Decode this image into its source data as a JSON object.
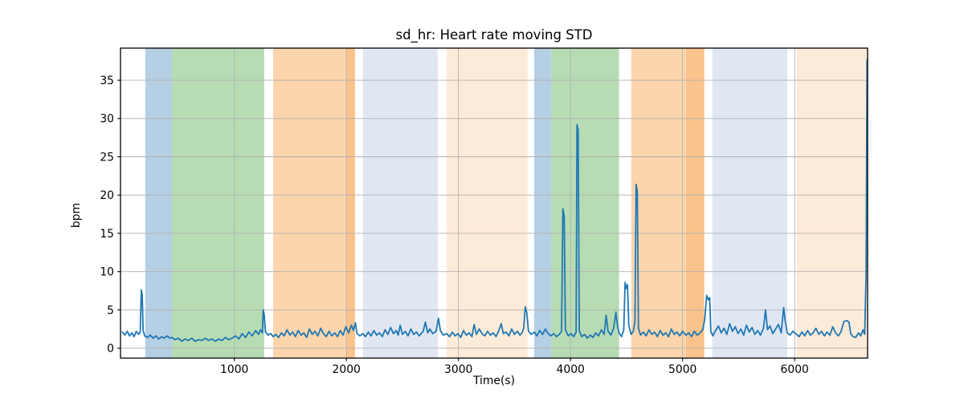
{
  "chart_data": {
    "type": "line",
    "title": "sd_hr: Heart rate moving STD",
    "xlabel": "Time(s)",
    "ylabel": "bpm",
    "xlim": [
      -16,
      6651
    ],
    "ylim": [
      -1.3,
      39.2
    ],
    "x_ticks": [
      1000,
      2000,
      3000,
      4000,
      5000,
      6000
    ],
    "y_ticks": [
      0,
      5,
      10,
      15,
      20,
      25,
      30,
      35
    ],
    "grid": true,
    "legend": "none",
    "line_color": "#1f77b4",
    "grid_color": "#b0b0b0",
    "spine_color": "#000000",
    "bands": [
      {
        "start": 205,
        "end": 443,
        "color": "#b5cfe4",
        "kind": "blue"
      },
      {
        "start": 443,
        "end": 1267,
        "color": "#b7dcb4",
        "kind": "green"
      },
      {
        "start": 1346,
        "end": 2003,
        "color": "#fcd5ad",
        "kind": "orange"
      },
      {
        "start": 2003,
        "end": 2077,
        "color": "#f9c38b",
        "kind": "orange-dark"
      },
      {
        "start": 2147,
        "end": 2816,
        "color": "#e0e7f3",
        "kind": "pale-blue"
      },
      {
        "start": 2895,
        "end": 3617,
        "color": "#fdebd9",
        "kind": "pale-orange"
      },
      {
        "start": 3676,
        "end": 3831,
        "color": "#b5cfe4",
        "kind": "blue"
      },
      {
        "start": 3831,
        "end": 4433,
        "color": "#b7dcb4",
        "kind": "green"
      },
      {
        "start": 4543,
        "end": 5030,
        "color": "#fcd5ad",
        "kind": "orange"
      },
      {
        "start": 5030,
        "end": 5193,
        "color": "#f9c38b",
        "kind": "orange-dark"
      },
      {
        "start": 5265,
        "end": 5934,
        "color": "#e0e7f3",
        "kind": "pale-blue"
      },
      {
        "start": 6017,
        "end": 6651,
        "color": "#fdebd9",
        "kind": "pale-orange"
      }
    ],
    "series": [
      [
        0,
        2.1
      ],
      [
        22,
        1.7
      ],
      [
        45,
        2.2
      ],
      [
        65,
        1.6
      ],
      [
        85,
        2.0
      ],
      [
        105,
        1.5
      ],
      [
        125,
        2.2
      ],
      [
        145,
        1.8
      ],
      [
        160,
        2.1
      ],
      [
        170,
        7.6
      ],
      [
        178,
        6.9
      ],
      [
        186,
        2.3
      ],
      [
        200,
        1.6
      ],
      [
        225,
        1.4
      ],
      [
        250,
        1.7
      ],
      [
        275,
        1.3
      ],
      [
        300,
        1.6
      ],
      [
        325,
        1.2
      ],
      [
        350,
        1.5
      ],
      [
        375,
        1.3
      ],
      [
        400,
        1.6
      ],
      [
        425,
        1.3
      ],
      [
        443,
        1.4
      ],
      [
        470,
        1.1
      ],
      [
        500,
        1.3
      ],
      [
        530,
        0.9
      ],
      [
        560,
        1.2
      ],
      [
        590,
        1.0
      ],
      [
        620,
        1.3
      ],
      [
        650,
        0.9
      ],
      [
        680,
        1.1
      ],
      [
        710,
        1.0
      ],
      [
        740,
        1.3
      ],
      [
        770,
        1.0
      ],
      [
        800,
        1.2
      ],
      [
        830,
        0.9
      ],
      [
        860,
        1.2
      ],
      [
        890,
        1.0
      ],
      [
        920,
        1.4
      ],
      [
        950,
        1.1
      ],
      [
        980,
        1.3
      ],
      [
        1010,
        1.6
      ],
      [
        1040,
        1.2
      ],
      [
        1070,
        1.9
      ],
      [
        1100,
        1.4
      ],
      [
        1130,
        2.1
      ],
      [
        1160,
        1.6
      ],
      [
        1190,
        2.3
      ],
      [
        1215,
        1.8
      ],
      [
        1235,
        2.4
      ],
      [
        1250,
        2.0
      ],
      [
        1258,
        5.0
      ],
      [
        1266,
        4.4
      ],
      [
        1278,
        2.1
      ],
      [
        1300,
        1.7
      ],
      [
        1325,
        1.9
      ],
      [
        1346,
        1.5
      ],
      [
        1370,
        1.8
      ],
      [
        1395,
        1.4
      ],
      [
        1420,
        2.0
      ],
      [
        1445,
        1.6
      ],
      [
        1470,
        2.4
      ],
      [
        1495,
        1.7
      ],
      [
        1520,
        2.1
      ],
      [
        1545,
        1.5
      ],
      [
        1570,
        2.3
      ],
      [
        1595,
        1.7
      ],
      [
        1620,
        2.0
      ],
      [
        1645,
        1.4
      ],
      [
        1670,
        2.5
      ],
      [
        1695,
        1.8
      ],
      [
        1720,
        2.2
      ],
      [
        1745,
        1.6
      ],
      [
        1770,
        2.6
      ],
      [
        1795,
        1.9
      ],
      [
        1820,
        1.5
      ],
      [
        1845,
        2.2
      ],
      [
        1870,
        1.6
      ],
      [
        1895,
        2.0
      ],
      [
        1920,
        1.5
      ],
      [
        1945,
        2.3
      ],
      [
        1970,
        1.7
      ],
      [
        1995,
        2.8
      ],
      [
        2020,
        2.0
      ],
      [
        2045,
        3.0
      ],
      [
        2063,
        2.3
      ],
      [
        2080,
        3.3
      ],
      [
        2095,
        1.9
      ],
      [
        2120,
        1.6
      ],
      [
        2147,
        1.9
      ],
      [
        2170,
        1.5
      ],
      [
        2195,
        2.1
      ],
      [
        2220,
        1.6
      ],
      [
        2245,
        2.3
      ],
      [
        2270,
        1.7
      ],
      [
        2295,
        2.0
      ],
      [
        2320,
        1.5
      ],
      [
        2345,
        2.4
      ],
      [
        2370,
        1.8
      ],
      [
        2395,
        2.7
      ],
      [
        2420,
        1.9
      ],
      [
        2445,
        2.3
      ],
      [
        2462,
        1.7
      ],
      [
        2480,
        3.0
      ],
      [
        2500,
        1.8
      ],
      [
        2525,
        2.2
      ],
      [
        2550,
        1.6
      ],
      [
        2575,
        2.5
      ],
      [
        2600,
        1.8
      ],
      [
        2625,
        2.1
      ],
      [
        2650,
        1.6
      ],
      [
        2685,
        2.2
      ],
      [
        2705,
        3.4
      ],
      [
        2725,
        2.0
      ],
      [
        2745,
        2.5
      ],
      [
        2770,
        1.9
      ],
      [
        2800,
        2.2
      ],
      [
        2822,
        3.9
      ],
      [
        2838,
        2.3
      ],
      [
        2865,
        1.7
      ],
      [
        2895,
        1.9
      ],
      [
        2920,
        1.5
      ],
      [
        2945,
        2.1
      ],
      [
        2970,
        1.6
      ],
      [
        2995,
        1.9
      ],
      [
        3020,
        1.4
      ],
      [
        3045,
        2.3
      ],
      [
        3070,
        1.7
      ],
      [
        3095,
        2.0
      ],
      [
        3120,
        1.5
      ],
      [
        3140,
        3.1
      ],
      [
        3160,
        1.8
      ],
      [
        3185,
        2.5
      ],
      [
        3210,
        1.9
      ],
      [
        3235,
        1.6
      ],
      [
        3260,
        2.2
      ],
      [
        3285,
        1.7
      ],
      [
        3310,
        2.0
      ],
      [
        3335,
        1.5
      ],
      [
        3360,
        2.3
      ],
      [
        3382,
        3.2
      ],
      [
        3400,
        1.9
      ],
      [
        3425,
        2.1
      ],
      [
        3450,
        1.6
      ],
      [
        3475,
        2.5
      ],
      [
        3500,
        1.8
      ],
      [
        3525,
        2.2
      ],
      [
        3548,
        1.7
      ],
      [
        3568,
        2.0
      ],
      [
        3582,
        2.6
      ],
      [
        3596,
        5.4
      ],
      [
        3610,
        4.6
      ],
      [
        3625,
        2.2
      ],
      [
        3650,
        1.8
      ],
      [
        3676,
        2.1
      ],
      [
        3700,
        1.6
      ],
      [
        3725,
        2.3
      ],
      [
        3750,
        1.8
      ],
      [
        3775,
        2.5
      ],
      [
        3800,
        1.9
      ],
      [
        3825,
        1.6
      ],
      [
        3850,
        1.9
      ],
      [
        3875,
        1.5
      ],
      [
        3900,
        1.8
      ],
      [
        3920,
        2.2
      ],
      [
        3932,
        18.2
      ],
      [
        3944,
        17.2
      ],
      [
        3954,
        2.4
      ],
      [
        3980,
        1.6
      ],
      [
        4005,
        1.9
      ],
      [
        4030,
        1.5
      ],
      [
        4050,
        2.1
      ],
      [
        4058,
        29.2
      ],
      [
        4068,
        28.5
      ],
      [
        4078,
        2.3
      ],
      [
        4100,
        1.5
      ],
      [
        4125,
        1.8
      ],
      [
        4150,
        1.3
      ],
      [
        4175,
        1.7
      ],
      [
        4200,
        1.4
      ],
      [
        4225,
        2.0
      ],
      [
        4250,
        1.6
      ],
      [
        4275,
        2.4
      ],
      [
        4300,
        1.8
      ],
      [
        4318,
        4.3
      ],
      [
        4335,
        2.2
      ],
      [
        4360,
        1.7
      ],
      [
        4385,
        2.6
      ],
      [
        4405,
        4.7
      ],
      [
        4420,
        2.8
      ],
      [
        4433,
        2.0
      ],
      [
        4455,
        1.5
      ],
      [
        4475,
        2.4
      ],
      [
        4487,
        8.6
      ],
      [
        4497,
        7.8
      ],
      [
        4508,
        8.3
      ],
      [
        4520,
        3.0
      ],
      [
        4540,
        1.8
      ],
      [
        4560,
        2.2
      ],
      [
        4575,
        3.5
      ],
      [
        4585,
        21.4
      ],
      [
        4596,
        20.4
      ],
      [
        4606,
        2.6
      ],
      [
        4625,
        1.7
      ],
      [
        4650,
        2.1
      ],
      [
        4675,
        1.6
      ],
      [
        4700,
        2.4
      ],
      [
        4725,
        1.8
      ],
      [
        4750,
        2.1
      ],
      [
        4775,
        1.5
      ],
      [
        4800,
        2.3
      ],
      [
        4825,
        1.7
      ],
      [
        4850,
        2.0
      ],
      [
        4875,
        1.5
      ],
      [
        4900,
        2.5
      ],
      [
        4925,
        1.8
      ],
      [
        4950,
        2.1
      ],
      [
        4975,
        1.6
      ],
      [
        5000,
        2.2
      ],
      [
        5030,
        1.7
      ],
      [
        5055,
        2.0
      ],
      [
        5080,
        1.5
      ],
      [
        5105,
        2.2
      ],
      [
        5130,
        1.7
      ],
      [
        5155,
        2.0
      ],
      [
        5180,
        2.4
      ],
      [
        5198,
        3.8
      ],
      [
        5215,
        6.9
      ],
      [
        5230,
        6.3
      ],
      [
        5242,
        6.6
      ],
      [
        5252,
        2.2
      ],
      [
        5270,
        1.6
      ],
      [
        5295,
        2.3
      ],
      [
        5320,
        2.9
      ],
      [
        5345,
        2.0
      ],
      [
        5370,
        2.6
      ],
      [
        5395,
        1.8
      ],
      [
        5420,
        3.2
      ],
      [
        5445,
        2.2
      ],
      [
        5470,
        2.8
      ],
      [
        5495,
        1.9
      ],
      [
        5520,
        2.5
      ],
      [
        5545,
        1.7
      ],
      [
        5570,
        3.0
      ],
      [
        5595,
        2.1
      ],
      [
        5620,
        2.7
      ],
      [
        5645,
        1.8
      ],
      [
        5670,
        2.3
      ],
      [
        5695,
        1.7
      ],
      [
        5722,
        2.6
      ],
      [
        5740,
        5.0
      ],
      [
        5758,
        2.4
      ],
      [
        5780,
        2.9
      ],
      [
        5805,
        1.9
      ],
      [
        5830,
        2.5
      ],
      [
        5855,
        3.1
      ],
      [
        5880,
        2.0
      ],
      [
        5902,
        5.3
      ],
      [
        5915,
        3.6
      ],
      [
        5934,
        2.0
      ],
      [
        5958,
        1.7
      ],
      [
        5985,
        2.2
      ],
      [
        6017,
        1.8
      ],
      [
        6040,
        1.5
      ],
      [
        6065,
        2.1
      ],
      [
        6090,
        1.6
      ],
      [
        6115,
        2.3
      ],
      [
        6140,
        1.7
      ],
      [
        6165,
        2.0
      ],
      [
        6190,
        2.6
      ],
      [
        6215,
        1.8
      ],
      [
        6240,
        2.2
      ],
      [
        6265,
        1.6
      ],
      [
        6290,
        2.1
      ],
      [
        6315,
        1.7
      ],
      [
        6340,
        2.8
      ],
      [
        6365,
        2.0
      ],
      [
        6390,
        1.6
      ],
      [
        6415,
        2.2
      ],
      [
        6440,
        3.5
      ],
      [
        6465,
        3.6
      ],
      [
        6485,
        3.4
      ],
      [
        6500,
        1.9
      ],
      [
        6520,
        1.5
      ],
      [
        6545,
        1.4
      ],
      [
        6570,
        2.0
      ],
      [
        6590,
        1.6
      ],
      [
        6610,
        2.4
      ],
      [
        6625,
        1.8
      ],
      [
        6638,
        10.0
      ],
      [
        6646,
        37.5
      ],
      [
        6652,
        37.9
      ]
    ]
  }
}
